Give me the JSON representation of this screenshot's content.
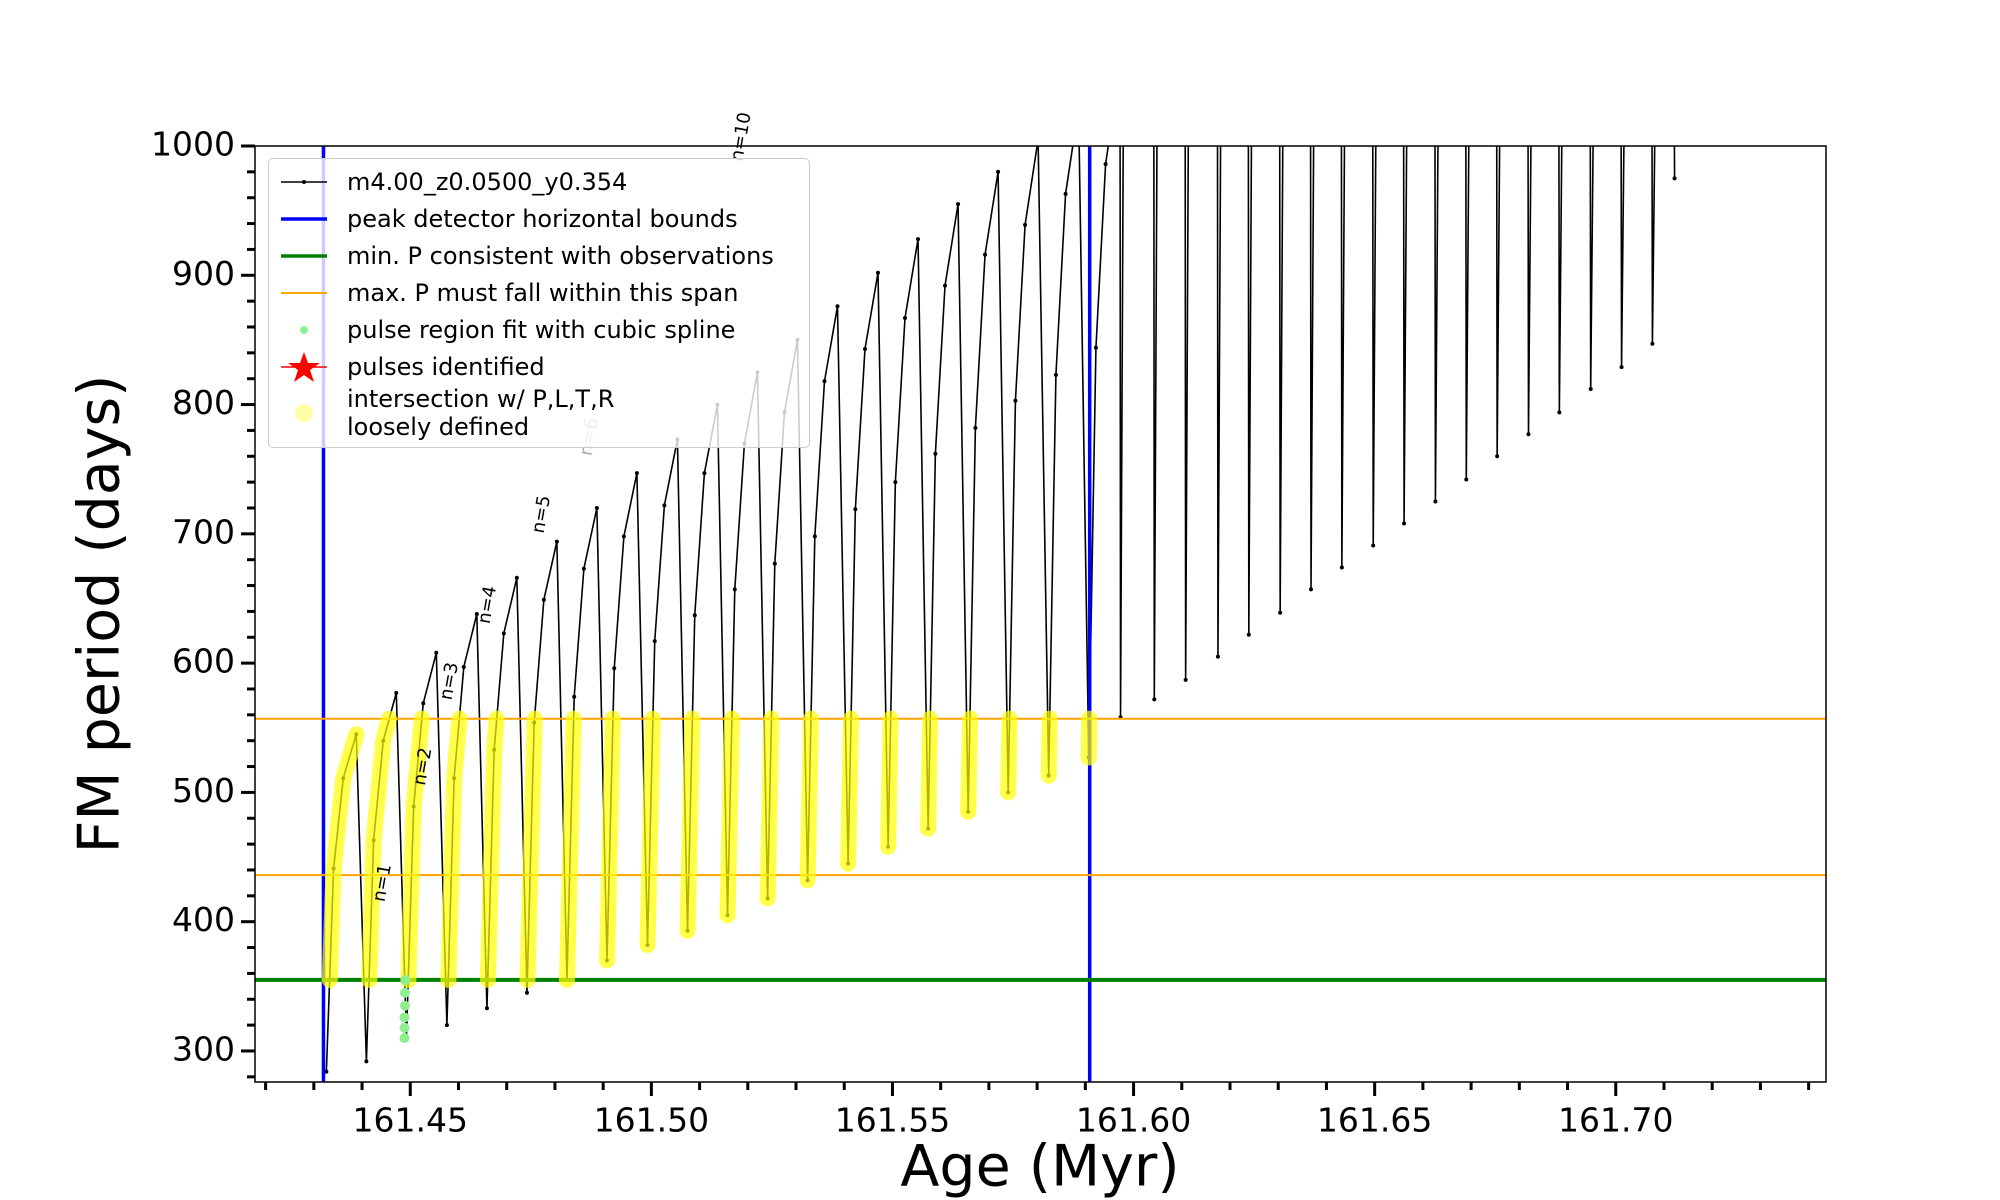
{
  "chart_data": {
    "type": "line",
    "xlabel": "Age (Myr)",
    "ylabel": "FM period (days)",
    "xlim": [
      161.4178,
      161.7436
    ],
    "ylim": [
      276,
      1000
    ],
    "xticks": [
      {
        "value": 161.45,
        "label": "161.45"
      },
      {
        "value": 161.5,
        "label": "161.50"
      },
      {
        "value": 161.55,
        "label": "161.55"
      },
      {
        "value": 161.6,
        "label": "161.60"
      },
      {
        "value": 161.65,
        "label": "161.65"
      },
      {
        "value": 161.7,
        "label": "161.70"
      }
    ],
    "xminorticks": [
      161.42,
      161.43,
      161.44,
      161.46,
      161.47,
      161.48,
      161.49,
      161.51,
      161.52,
      161.53,
      161.54,
      161.56,
      161.57,
      161.58,
      161.59,
      161.61,
      161.62,
      161.63,
      161.64,
      161.66,
      161.67,
      161.68,
      161.69,
      161.71,
      161.72,
      161.73,
      161.74
    ],
    "yticks": [
      300,
      400,
      500,
      600,
      700,
      800,
      900,
      1000
    ],
    "yminorticks": [
      280,
      320,
      340,
      360,
      380,
      420,
      440,
      460,
      480,
      520,
      540,
      560,
      580,
      620,
      640,
      660,
      680,
      720,
      740,
      760,
      780,
      820,
      840,
      860,
      880,
      920,
      940,
      960,
      980
    ],
    "series": [
      {
        "name": "m4.00_z0.0500_y0.354",
        "color": "#000000",
        "kind": "line",
        "x": [
          161.4326,
          161.4341,
          161.4361,
          161.4388,
          161.4409,
          161.4424,
          161.4444,
          161.4471,
          161.4492,
          161.4507,
          161.4527,
          161.4554,
          161.4576,
          161.4591,
          161.4611,
          161.4638,
          161.4659,
          161.4674,
          161.4694,
          161.4721,
          161.4742,
          161.4757,
          161.4777,
          161.4804,
          161.4825,
          161.484,
          161.486,
          161.4887,
          161.4908,
          161.4923,
          161.4943,
          161.497,
          161.4992,
          161.5007,
          161.5027,
          161.5054,
          161.5075,
          161.509,
          161.511,
          161.5137,
          161.5158,
          161.5173,
          161.5193,
          161.522,
          161.5241,
          161.5256,
          161.5276,
          161.5303,
          161.5324,
          161.5339,
          161.5359,
          161.5386,
          161.5408,
          161.5423,
          161.5443,
          161.547,
          161.5491,
          161.5506,
          161.5526,
          161.5553,
          161.5574,
          161.5589,
          161.5609,
          161.5636,
          161.5657,
          161.5672,
          161.5692,
          161.5719,
          161.574,
          161.5755,
          161.5775,
          161.5802,
          161.5824,
          161.5839,
          161.5859,
          161.5886,
          161.5907,
          161.5922,
          161.5942,
          161.5969,
          161.5972,
          161.5973,
          161.5979,
          161.6042,
          161.6043,
          161.6049,
          161.6107,
          161.6108,
          161.6114,
          161.6174,
          161.6175,
          161.6181,
          161.6238,
          161.6239,
          161.6245,
          161.6303,
          161.6304,
          161.631,
          161.6367,
          161.6368,
          161.6374,
          161.6431,
          161.6432,
          161.6438,
          161.6496,
          161.6497,
          161.6503,
          161.656,
          161.6561,
          161.6567,
          161.6625,
          161.6626,
          161.6632,
          161.6689,
          161.669,
          161.6696,
          161.6753,
          161.6754,
          161.676,
          161.6818,
          161.6819,
          161.6825,
          161.6882,
          161.6883,
          161.6889,
          161.6947,
          161.6948,
          161.6954,
          161.7011,
          161.7012,
          161.7018,
          161.7075,
          161.7076,
          161.7082,
          161.7121,
          161.7122
        ],
        "values": [
          284,
          441,
          511,
          545,
          292,
          463,
          540,
          577,
          310,
          489,
          569,
          608,
          320,
          511,
          597,
          638,
          333,
          533,
          623,
          666,
          345,
          554,
          649,
          694,
          355,
          574,
          673,
          720,
          370,
          596,
          698,
          747,
          382,
          617,
          722,
          773,
          393,
          637,
          747,
          800,
          405,
          657,
          770,
          825,
          418,
          677,
          794,
          850,
          432,
          698,
          818,
          876,
          445,
          719,
          843,
          902,
          458,
          740,
          867,
          928,
          472,
          762,
          892,
          955,
          485,
          782,
          916,
          980,
          500,
          803,
          939,
          1005,
          513,
          823,
          963,
          1030,
          527,
          844,
          986,
          1055,
          1040,
          558,
          1040,
          1040,
          572,
          1040,
          1040,
          587,
          1040,
          1040,
          605,
          1040,
          1040,
          622,
          1040,
          1040,
          639,
          1040,
          1040,
          657,
          1040,
          1040,
          674,
          1040,
          1040,
          691,
          1040,
          1040,
          708,
          1040,
          1040,
          725,
          1040,
          1040,
          742,
          1040,
          1040,
          760,
          1040,
          1040,
          777,
          1040,
          1040,
          794,
          1040,
          1040,
          812,
          1040,
          1040,
          829,
          1040,
          1040,
          847,
          1040,
          1040,
          975
        ]
      },
      {
        "name": "peak detector horizontal bounds",
        "color": "#0000ff",
        "kind": "vline",
        "x": [
          161.432,
          161.5909
        ]
      },
      {
        "name": "min. P consistent with observations",
        "color": "#008000",
        "kind": "hline",
        "values": [
          355
        ]
      },
      {
        "name": "max. P must fall within this span",
        "color": "#ffa500",
        "kind": "hline",
        "values": [
          436,
          557
        ]
      },
      {
        "name": "pulse region fit with cubic spline",
        "color": "#90ee90",
        "kind": "scatter",
        "x": [
          161.4488,
          161.4488,
          161.4488,
          161.4489,
          161.4489,
          161.449
        ],
        "values": [
          310,
          318,
          326,
          335,
          345,
          355
        ]
      },
      {
        "name": "pulses identified",
        "color": "#ff0000",
        "kind": "star",
        "x": [],
        "values": []
      },
      {
        "name": "intersection w/ P,L,T,R\nloosely defined",
        "color": "#ffff00",
        "kind": "band",
        "x": [
          161.4333,
          161.4341,
          161.4361,
          161.4388,
          null,
          161.4415,
          161.4424,
          161.4444,
          161.4456,
          null,
          161.4496,
          161.4507,
          161.4524,
          null,
          161.4579,
          161.4591,
          161.4602,
          null,
          161.4661,
          161.4674,
          161.4679,
          null,
          161.4743,
          161.4758,
          null,
          161.4825,
          161.4839,
          null,
          161.4908,
          161.492,
          null,
          161.4992,
          161.5003,
          null,
          161.5075,
          161.5085,
          null,
          161.5158,
          161.5167,
          null,
          161.5241,
          161.5249,
          null,
          161.5324,
          161.5331,
          null,
          161.5408,
          161.5414,
          null,
          161.5491,
          161.5496,
          null,
          161.5574,
          161.5578,
          null,
          161.5657,
          161.5661,
          null,
          161.574,
          161.5743,
          null,
          161.5824,
          161.5826,
          null,
          161.5907,
          161.5908
        ],
        "values": [
          355,
          441,
          511,
          545,
          null,
          355,
          463,
          540,
          557,
          null,
          355,
          489,
          557,
          null,
          355,
          511,
          557,
          null,
          355,
          533,
          557,
          null,
          355,
          557,
          null,
          355,
          557,
          null,
          370,
          557,
          null,
          382,
          557,
          null,
          393,
          557,
          null,
          405,
          557,
          null,
          418,
          557,
          null,
          432,
          557,
          null,
          445,
          557,
          null,
          458,
          557,
          null,
          472,
          557,
          null,
          485,
          557,
          null,
          500,
          557,
          null,
          513,
          557,
          null,
          527,
          557
        ]
      }
    ],
    "annotations": [
      {
        "text": "n=1",
        "x": 161.4443,
        "y": 430,
        "color": "#000000"
      },
      {
        "text": "n=2",
        "x": 161.4527,
        "y": 520,
        "color": "#000000"
      },
      {
        "text": "n=3",
        "x": 161.4582,
        "y": 586,
        "color": "#000000"
      },
      {
        "text": "n=4",
        "x": 161.4661,
        "y": 645,
        "color": "#000000"
      },
      {
        "text": "n=5",
        "x": 161.4773,
        "y": 715,
        "color": "#000000"
      },
      {
        "text": "n=6",
        "x": 161.4872,
        "y": 775,
        "color": "#aaaaaa"
      },
      {
        "text": "n=10",
        "x": 161.5187,
        "y": 1007,
        "color": "#000000"
      }
    ]
  }
}
